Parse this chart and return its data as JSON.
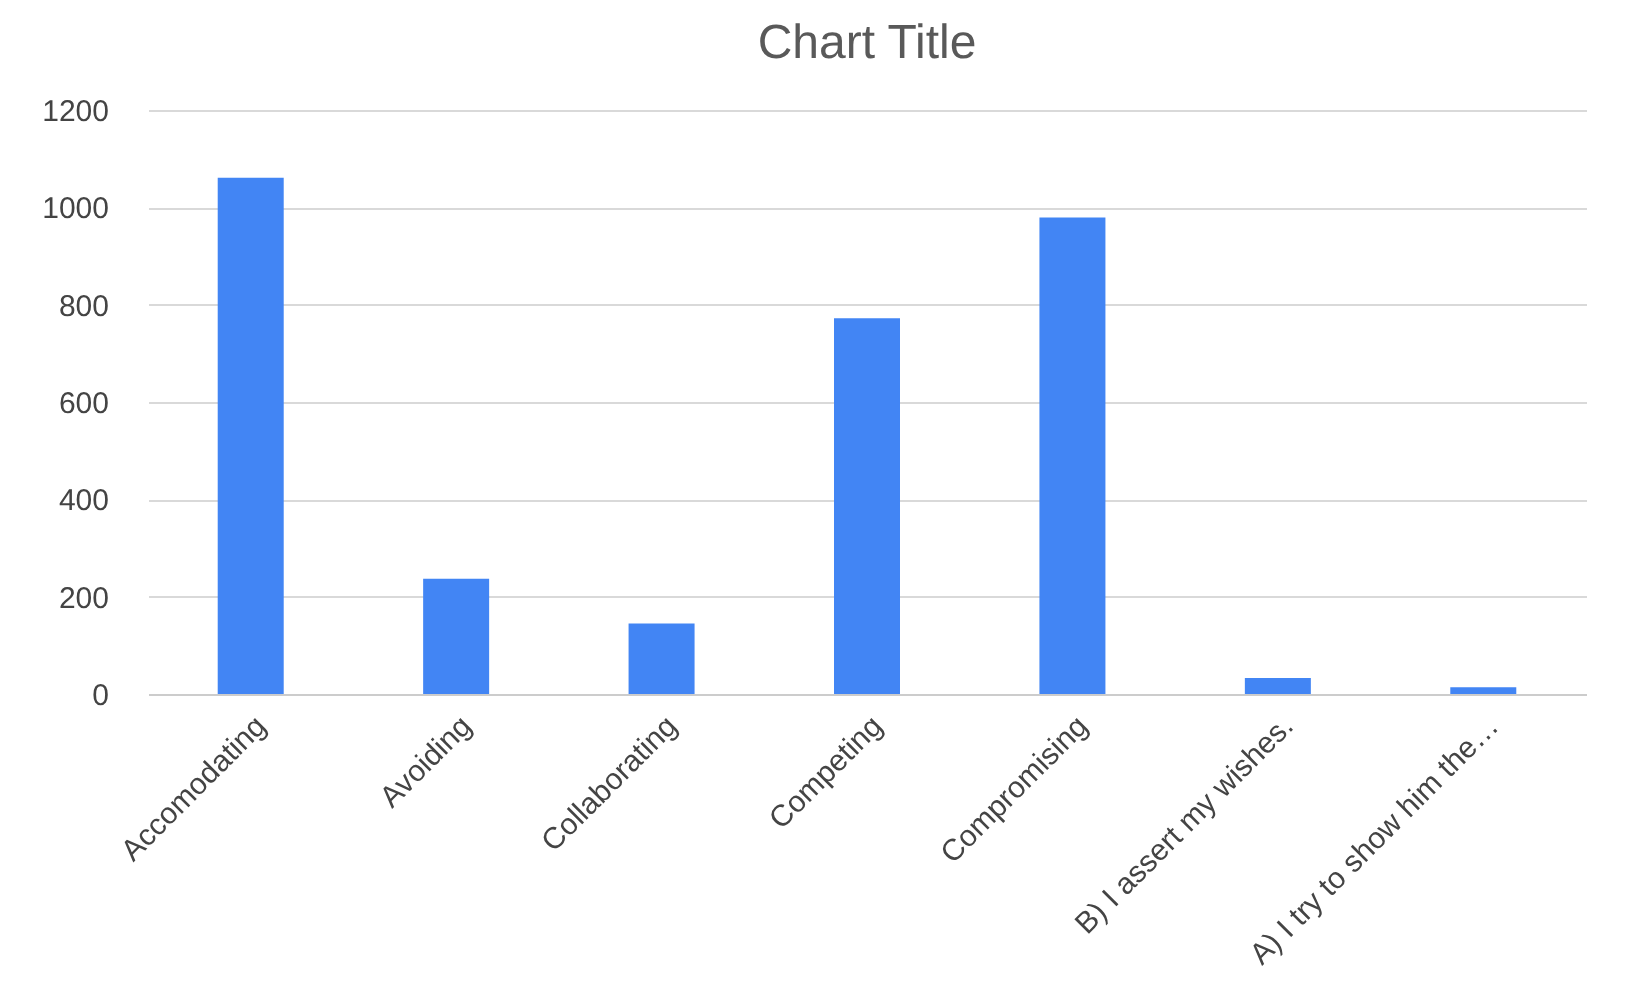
{
  "chart_data": {
    "type": "bar",
    "title": "Chart Title",
    "categories": [
      "Accomodating",
      "Avoiding",
      "Collaborating",
      "Competing",
      "Compromising",
      "B) I assert my wishes.",
      "A) I try to show him the…"
    ],
    "values": [
      1061,
      237,
      145,
      772,
      979,
      33,
      14
    ],
    "color": "#4285f4",
    "ylim": [
      0,
      1200
    ],
    "yticks": [
      0,
      200,
      400,
      600,
      800,
      1000,
      1200
    ],
    "grid": "y"
  }
}
